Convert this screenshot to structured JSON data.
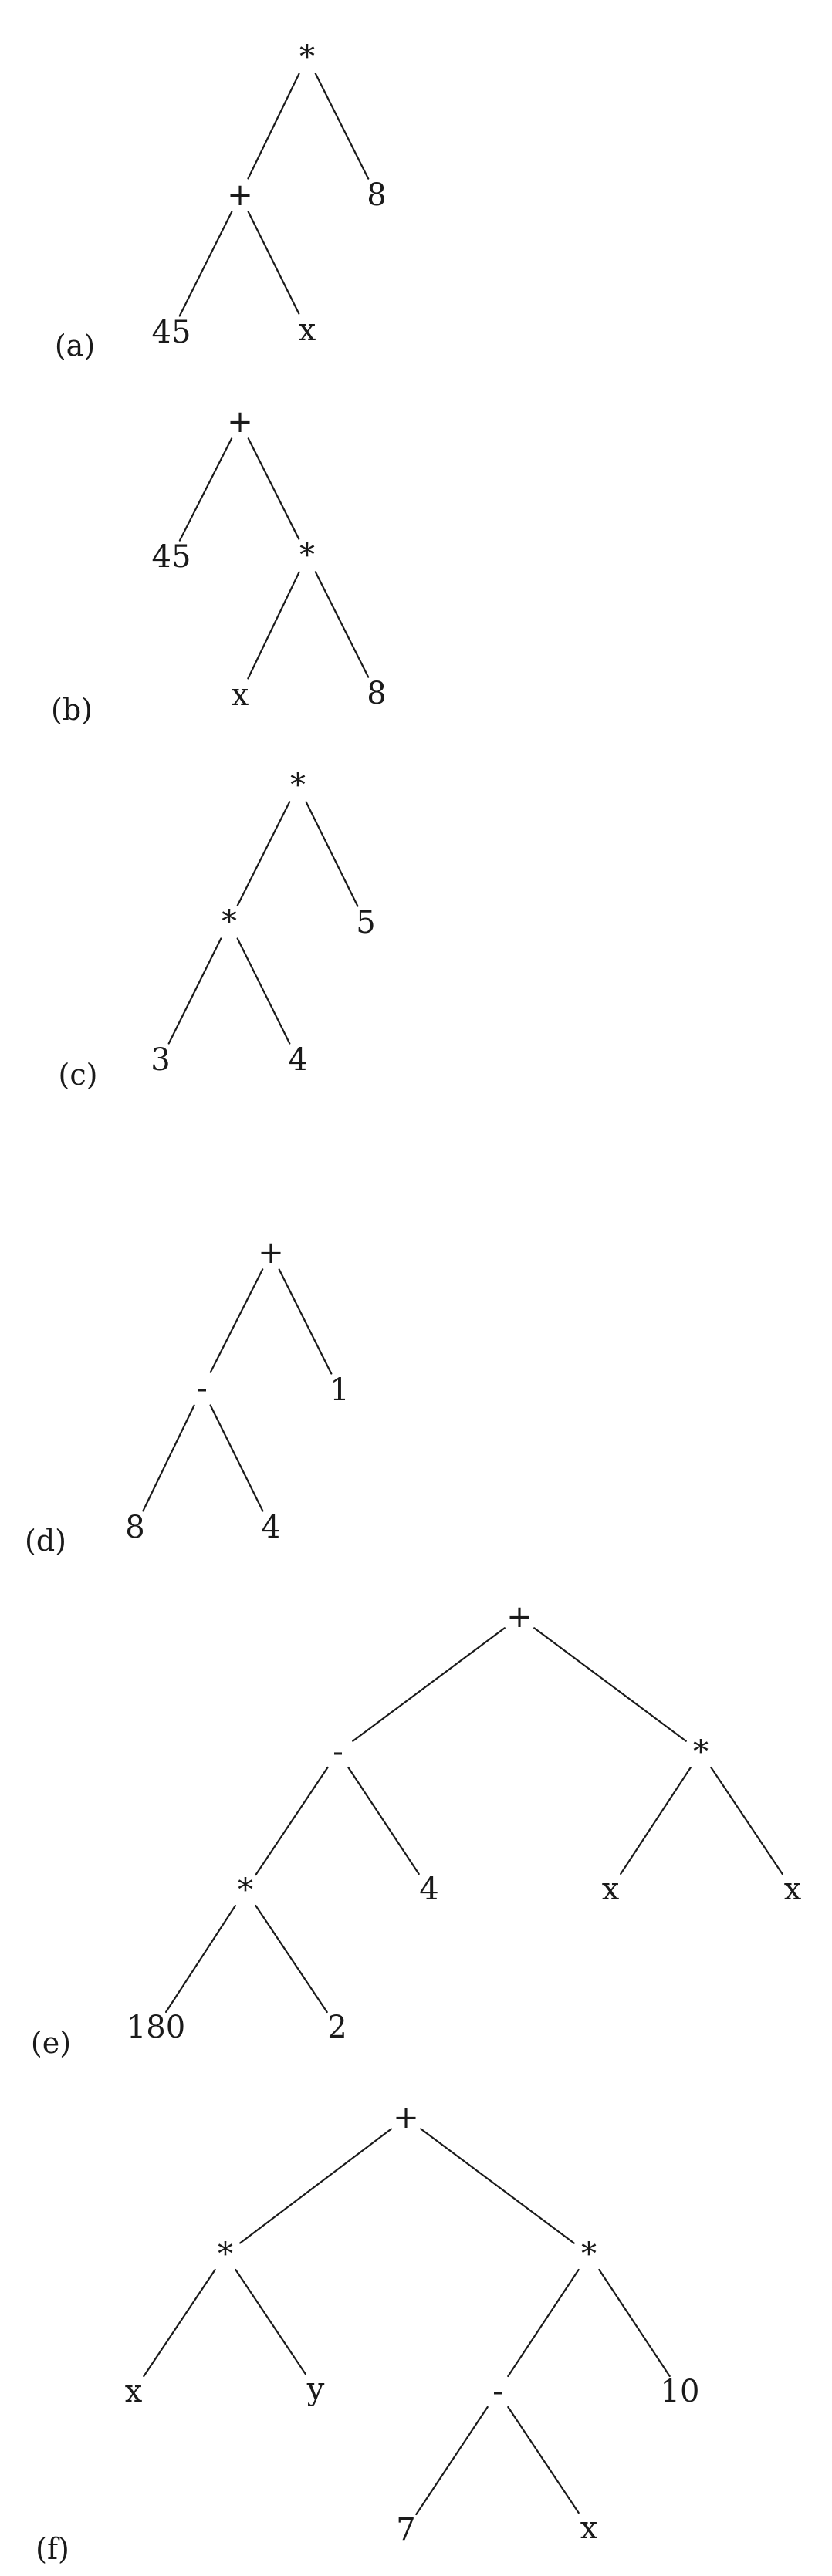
{
  "trees": [
    {
      "label": "(a)",
      "nodes": [
        {
          "id": "r",
          "text": "*"
        },
        {
          "id": "p",
          "text": "+"
        },
        {
          "id": "n8",
          "text": "8"
        },
        {
          "id": "n45",
          "text": "45"
        },
        {
          "id": "nx",
          "text": "x"
        }
      ],
      "edges": [
        [
          "r",
          "p"
        ],
        [
          "r",
          "n8"
        ],
        [
          "p",
          "n45"
        ],
        [
          "p",
          "nx"
        ]
      ]
    },
    {
      "label": "(b)",
      "nodes": [
        {
          "id": "r",
          "text": "+"
        },
        {
          "id": "n45",
          "text": "45"
        },
        {
          "id": "m",
          "text": "*"
        },
        {
          "id": "nx",
          "text": "x"
        },
        {
          "id": "n8",
          "text": "8"
        }
      ],
      "edges": [
        [
          "r",
          "n45"
        ],
        [
          "r",
          "m"
        ],
        [
          "m",
          "nx"
        ],
        [
          "m",
          "n8"
        ]
      ]
    },
    {
      "label": "(c)",
      "nodes": [
        {
          "id": "r",
          "text": "*"
        },
        {
          "id": "m",
          "text": "*"
        },
        {
          "id": "n5",
          "text": "5"
        },
        {
          "id": "n3",
          "text": "3"
        },
        {
          "id": "n4",
          "text": "4"
        }
      ],
      "edges": [
        [
          "r",
          "m"
        ],
        [
          "r",
          "n5"
        ],
        [
          "m",
          "n3"
        ],
        [
          "m",
          "n4"
        ]
      ]
    },
    {
      "label": "(d)",
      "nodes": [
        {
          "id": "r",
          "text": "+"
        },
        {
          "id": "s",
          "text": "-"
        },
        {
          "id": "n1",
          "text": "1"
        },
        {
          "id": "n8",
          "text": "8"
        },
        {
          "id": "n4",
          "text": "4"
        }
      ],
      "edges": [
        [
          "r",
          "s"
        ],
        [
          "r",
          "n1"
        ],
        [
          "s",
          "n8"
        ],
        [
          "s",
          "n4"
        ]
      ]
    },
    {
      "label": "(e)",
      "nodes": [
        {
          "id": "r",
          "text": "+"
        },
        {
          "id": "s",
          "text": "-"
        },
        {
          "id": "m2",
          "text": "*"
        },
        {
          "id": "m1",
          "text": "*"
        },
        {
          "id": "n4",
          "text": "4"
        },
        {
          "id": "x1",
          "text": "x"
        },
        {
          "id": "x2",
          "text": "x"
        },
        {
          "id": "n180",
          "text": "180"
        },
        {
          "id": "n2",
          "text": "2"
        }
      ],
      "edges": [
        [
          "r",
          "s"
        ],
        [
          "r",
          "m2"
        ],
        [
          "s",
          "m1"
        ],
        [
          "s",
          "n4"
        ],
        [
          "m2",
          "x1"
        ],
        [
          "m2",
          "x2"
        ],
        [
          "m1",
          "n180"
        ],
        [
          "m1",
          "n2"
        ]
      ]
    },
    {
      "label": "(f)",
      "nodes": [
        {
          "id": "r",
          "text": "+"
        },
        {
          "id": "m1",
          "text": "*"
        },
        {
          "id": "m2",
          "text": "*"
        },
        {
          "id": "nx",
          "text": "x"
        },
        {
          "id": "ny",
          "text": "y"
        },
        {
          "id": "s",
          "text": "-"
        },
        {
          "id": "n10",
          "text": "10"
        },
        {
          "id": "n7",
          "text": "7"
        },
        {
          "id": "x2",
          "text": "x"
        }
      ],
      "edges": [
        [
          "r",
          "m1"
        ],
        [
          "r",
          "m2"
        ],
        [
          "m1",
          "nx"
        ],
        [
          "m1",
          "ny"
        ],
        [
          "m2",
          "s"
        ],
        [
          "m2",
          "n10"
        ],
        [
          "s",
          "n7"
        ],
        [
          "s",
          "x2"
        ]
      ]
    }
  ]
}
